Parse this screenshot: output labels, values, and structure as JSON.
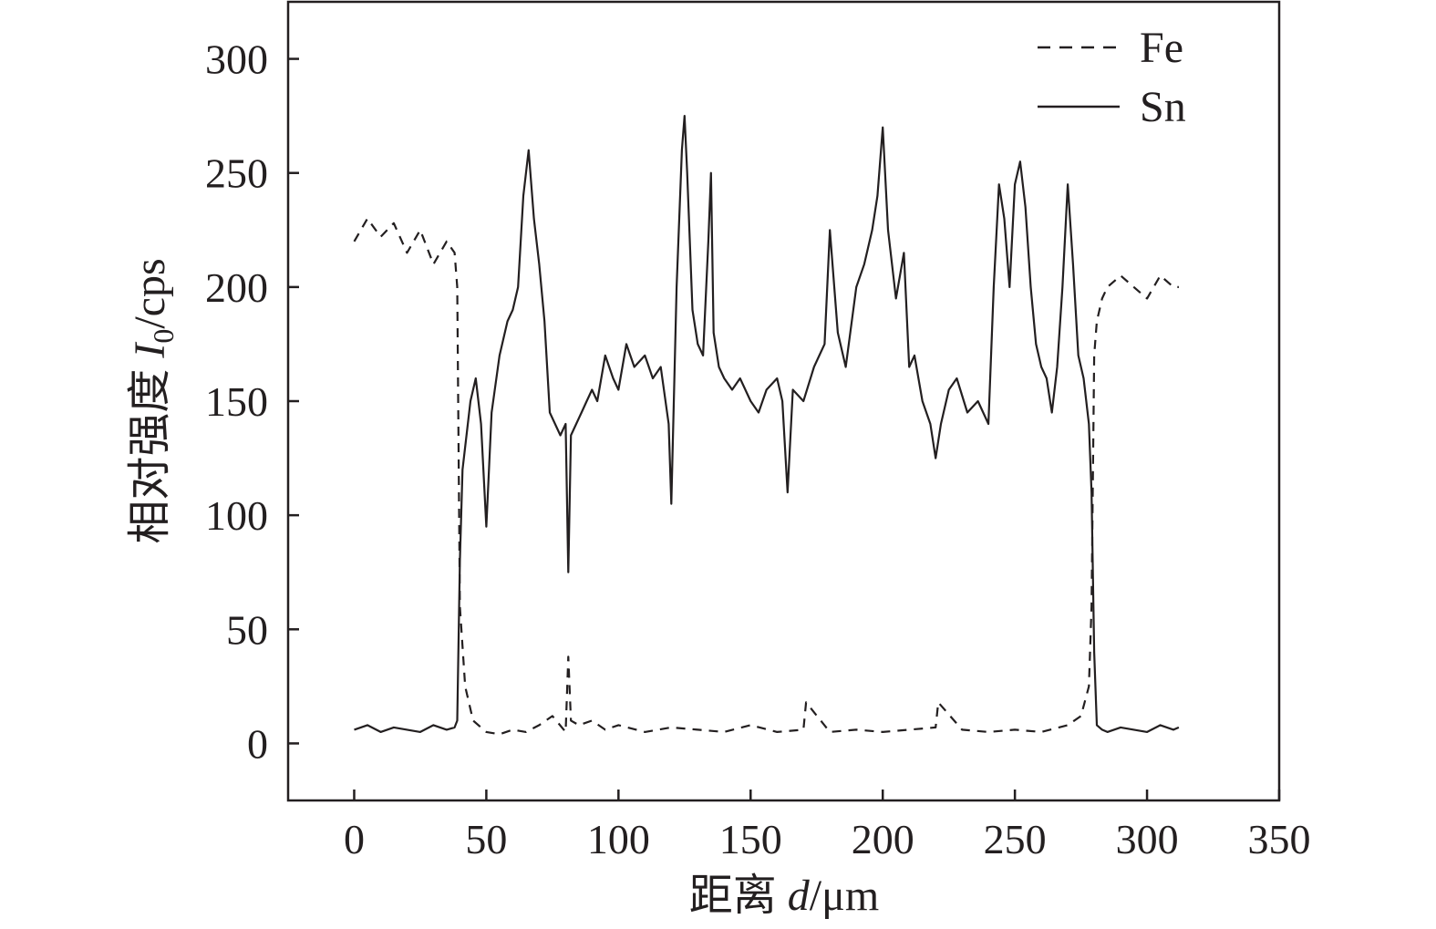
{
  "chart_data": {
    "type": "line",
    "xlabel": "距离 d/μm",
    "ylabel": "相对强度 I0/cps",
    "xlabel_parts": {
      "prefix": "距离 ",
      "var": "d",
      "unit": "/μm"
    },
    "ylabel_parts": {
      "prefix": "相对强度 ",
      "var": "I",
      "sub": "0",
      "unit": "/cps"
    },
    "xlim": [
      -25,
      350
    ],
    "ylim": [
      -25,
      325
    ],
    "xticks": [
      0,
      50,
      100,
      150,
      200,
      250,
      300,
      350
    ],
    "yticks": [
      0,
      50,
      100,
      150,
      200,
      250,
      300
    ],
    "xtick_labels": [
      "0",
      "50",
      "100",
      "150",
      "200",
      "250",
      "300",
      "350"
    ],
    "ytick_labels": [
      "0",
      "50",
      "100",
      "150",
      "200",
      "250",
      "300"
    ],
    "grid": false,
    "legend_position": "top-right",
    "color": "#231f20",
    "series": [
      {
        "name": "Fe",
        "style": "dashed",
        "x": [
          0,
          5,
          10,
          15,
          20,
          25,
          30,
          35,
          38,
          39,
          40,
          42,
          45,
          50,
          55,
          60,
          65,
          70,
          75,
          80,
          81,
          82,
          85,
          90,
          95,
          100,
          110,
          120,
          130,
          140,
          150,
          160,
          170,
          171,
          180,
          190,
          200,
          210,
          220,
          221,
          230,
          240,
          250,
          260,
          270,
          275,
          278,
          279,
          280,
          281,
          283,
          285,
          290,
          295,
          300,
          305,
          310,
          312
        ],
        "y": [
          220,
          230,
          222,
          228,
          215,
          225,
          210,
          220,
          215,
          200,
          60,
          25,
          10,
          5,
          4,
          6,
          5,
          8,
          12,
          5,
          38,
          10,
          8,
          10,
          6,
          8,
          5,
          7,
          6,
          5,
          8,
          5,
          6,
          18,
          5,
          6,
          5,
          6,
          7,
          18,
          6,
          5,
          6,
          5,
          8,
          12,
          25,
          60,
          170,
          185,
          195,
          200,
          205,
          200,
          195,
          205,
          200,
          200
        ]
      },
      {
        "name": "Sn",
        "style": "solid",
        "x": [
          0,
          5,
          10,
          15,
          20,
          25,
          30,
          35,
          38,
          39,
          40,
          41,
          42,
          44,
          46,
          48,
          50,
          52,
          55,
          58,
          60,
          62,
          64,
          66,
          68,
          70,
          72,
          74,
          76,
          78,
          80,
          81,
          82,
          84,
          86,
          88,
          90,
          92,
          95,
          98,
          100,
          103,
          106,
          110,
          113,
          116,
          119,
          120,
          122,
          124,
          125,
          126,
          128,
          130,
          132,
          134,
          135,
          136,
          138,
          140,
          143,
          146,
          150,
          153,
          156,
          160,
          162,
          164,
          166,
          170,
          174,
          178,
          180,
          183,
          186,
          190,
          193,
          196,
          198,
          200,
          202,
          205,
          208,
          210,
          212,
          215,
          218,
          220,
          222,
          225,
          228,
          232,
          236,
          240,
          242,
          244,
          246,
          248,
          250,
          252,
          254,
          256,
          258,
          260,
          262,
          264,
          266,
          268,
          270,
          272,
          274,
          276,
          278,
          279,
          280,
          281,
          283,
          285,
          290,
          295,
          300,
          305,
          310,
          312
        ],
        "y": [
          6,
          8,
          5,
          7,
          6,
          5,
          8,
          6,
          7,
          10,
          80,
          120,
          130,
          150,
          160,
          140,
          95,
          145,
          170,
          185,
          190,
          200,
          240,
          260,
          230,
          210,
          185,
          145,
          140,
          135,
          140,
          75,
          135,
          140,
          145,
          150,
          155,
          150,
          170,
          160,
          155,
          175,
          165,
          170,
          160,
          165,
          140,
          105,
          200,
          260,
          275,
          250,
          190,
          175,
          170,
          220,
          250,
          180,
          165,
          160,
          155,
          160,
          150,
          145,
          155,
          160,
          150,
          110,
          155,
          150,
          165,
          175,
          225,
          180,
          165,
          200,
          210,
          225,
          240,
          270,
          225,
          195,
          215,
          165,
          170,
          150,
          140,
          125,
          140,
          155,
          160,
          145,
          150,
          140,
          200,
          245,
          230,
          200,
          245,
          255,
          235,
          200,
          175,
          165,
          160,
          145,
          165,
          200,
          245,
          210,
          170,
          160,
          140,
          110,
          40,
          8,
          6,
          5,
          7,
          6,
          5,
          8,
          6,
          7
        ]
      }
    ]
  }
}
